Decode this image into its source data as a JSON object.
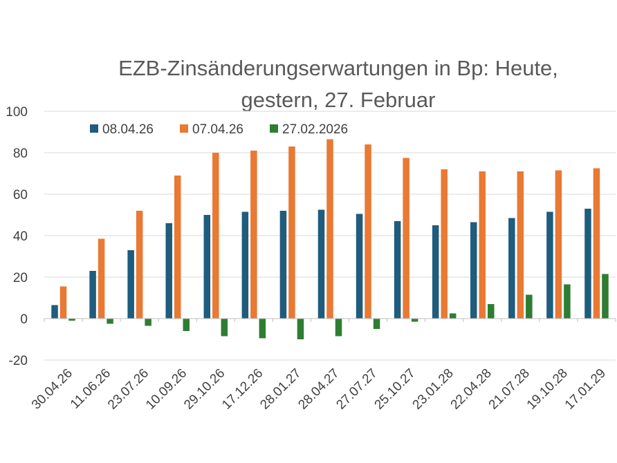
{
  "chart_data": {
    "type": "bar",
    "title_lines": [
      "EZB-Zinsänderungserwartungen in Bp: Heute,",
      "gestern, 27. Februar"
    ],
    "xlabel": "",
    "ylabel": "",
    "ylim": [
      -20,
      100
    ],
    "yticks": [
      "100",
      "80",
      "60",
      "40",
      "20",
      "0",
      "-20"
    ],
    "grid": true,
    "legend_position": "top",
    "categories": [
      "30.04.26",
      "11.06.26",
      "23.07.26",
      "10.09.26",
      "29.10.26",
      "17.12.26",
      "28.01.27",
      "28.04.27",
      "27.07.27",
      "25.10.27",
      "23.01.28",
      "22.04.28",
      "21.07.28",
      "19.10.28",
      "17.01.29"
    ],
    "series": [
      {
        "name": "08.04.26",
        "color": "#1f5c7e",
        "values": [
          6.5,
          23,
          33,
          46,
          50,
          51.5,
          52,
          52.5,
          50.5,
          47,
          45,
          46.5,
          48.5,
          51.5,
          53
        ]
      },
      {
        "name": "07.04.26",
        "color": "#e97933",
        "values": [
          15.5,
          38.5,
          52,
          69,
          80,
          81,
          83,
          86.5,
          84,
          77.5,
          72,
          71,
          71,
          71.5,
          72.5
        ]
      },
      {
        "name": "27.02.2026",
        "color": "#2e7d32",
        "values": [
          -1,
          -2.5,
          -3.5,
          -6,
          -8.5,
          -9.5,
          -10,
          -8.5,
          -5,
          -1.5,
          2.5,
          7,
          11.5,
          16.5,
          21.5
        ]
      }
    ]
  }
}
